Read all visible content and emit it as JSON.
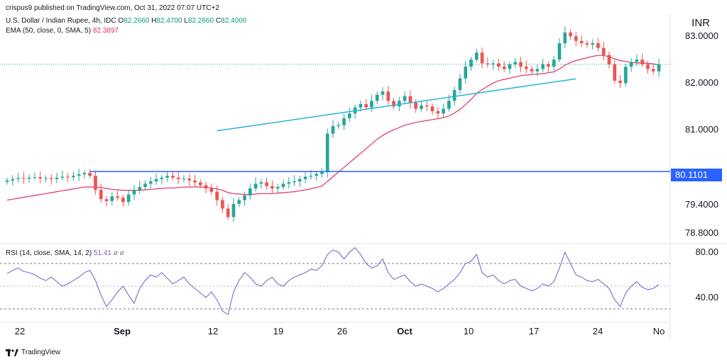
{
  "header": {
    "published": "crispus9 published on TradingView.com, Oct 31, 2022 07:07 UTC+2",
    "symbol": "U.S. Dollar / Indian Rupee, 4h, IDC",
    "ohlc": {
      "O_label": "O",
      "O": "82.2660",
      "H_label": "H",
      "H": "82.4700",
      "L_label": "L",
      "L": "82.2660",
      "C_label": "C",
      "C": "82.4000"
    },
    "ema_label": "EMA (50, close, 0, SMA, 5)",
    "ema_value": "82.3897"
  },
  "currency": "INR",
  "rsi_header": {
    "label": "RSI (14, close, SMA, 14, 2)",
    "value": "51.41",
    "extra": "ø  ø"
  },
  "price_tag": "80.1101",
  "brand": "TradingView",
  "colors": {
    "up": "#26a69a",
    "down": "#ef5350",
    "ema": "#e0306a",
    "support": "#2962ff",
    "trendline": "#23b5d3",
    "rsi": "#7e57c2"
  },
  "chart_data": {
    "type": "candlestick",
    "price_axis": {
      "ticks": [
        "83.0000",
        "82.0000",
        "81.0000",
        "80.1101",
        "79.4000",
        "78.8000"
      ],
      "ylim": [
        78.6,
        83.35
      ]
    },
    "x_axis": {
      "ticks": [
        "22",
        "Sep",
        "12",
        "19",
        "26",
        "Oct",
        "10",
        "17",
        "24",
        "No"
      ],
      "bold": [
        "Sep",
        "Oct"
      ]
    },
    "horizontal_support_level": 80.1101,
    "last_price_line": 82.4,
    "trendline": {
      "from": [
        38,
        80.98
      ],
      "to": [
        103,
        82.0
      ]
    },
    "closes": [
      79.92,
      79.95,
      79.97,
      79.96,
      79.98,
      79.99,
      79.96,
      79.97,
      79.95,
      79.98,
      80.0,
      79.99,
      80.02,
      80.05,
      80.08,
      80.02,
      79.72,
      79.52,
      79.48,
      79.58,
      79.55,
      79.46,
      79.62,
      79.72,
      79.78,
      79.85,
      79.9,
      79.95,
      79.98,
      80.02,
      79.98,
      79.95,
      79.96,
      79.92,
      79.88,
      79.82,
      79.75,
      79.68,
      79.5,
      79.32,
      79.14,
      79.42,
      79.5,
      79.6,
      79.75,
      79.85,
      79.88,
      79.8,
      79.75,
      79.78,
      79.85,
      79.88,
      79.9,
      79.95,
      80.0,
      80.02,
      80.06,
      80.1,
      80.92,
      81.08,
      81.1,
      81.25,
      81.35,
      81.48,
      81.55,
      81.48,
      81.62,
      81.75,
      81.82,
      81.62,
      81.5,
      81.62,
      81.72,
      81.58,
      81.45,
      81.52,
      81.5,
      81.4,
      81.35,
      81.45,
      81.62,
      81.85,
      82.1,
      82.35,
      82.5,
      82.65,
      82.42,
      82.4,
      82.42,
      82.35,
      82.3,
      82.4,
      82.45,
      82.35,
      82.3,
      82.25,
      82.3,
      82.4,
      82.35,
      82.5,
      82.85,
      83.08,
      83.0,
      82.9,
      82.85,
      82.82,
      82.85,
      82.75,
      82.6,
      82.4,
      82.05,
      82.0,
      82.35,
      82.45,
      82.5,
      82.4,
      82.3,
      82.25,
      82.4
    ],
    "ema50": [
      79.5,
      79.52,
      79.54,
      79.56,
      79.58,
      79.6,
      79.62,
      79.64,
      79.66,
      79.68,
      79.7,
      79.72,
      79.74,
      79.76,
      79.78,
      79.78,
      79.78,
      79.77,
      79.75,
      79.73,
      79.72,
      79.71,
      79.71,
      79.71,
      79.71,
      79.72,
      79.73,
      79.74,
      79.75,
      79.76,
      79.76,
      79.77,
      79.78,
      79.78,
      79.78,
      79.78,
      79.77,
      79.76,
      79.74,
      79.71,
      79.66,
      79.64,
      79.63,
      79.62,
      79.62,
      79.63,
      79.64,
      79.64,
      79.64,
      79.65,
      79.66,
      79.67,
      79.68,
      79.7,
      79.72,
      79.74,
      79.77,
      79.8,
      79.9,
      80.0,
      80.1,
      80.2,
      80.3,
      80.4,
      80.5,
      80.6,
      80.7,
      80.8,
      80.88,
      80.95,
      81.0,
      81.05,
      81.1,
      81.13,
      81.16,
      81.18,
      81.2,
      81.22,
      81.24,
      81.26,
      81.3,
      81.36,
      81.44,
      81.54,
      81.65,
      81.78,
      81.86,
      81.93,
      82.0,
      82.05,
      82.08,
      82.1,
      82.13,
      82.16,
      82.17,
      82.18,
      82.19,
      82.2,
      82.22,
      82.24,
      82.3,
      82.38,
      82.44,
      82.48,
      82.51,
      82.54,
      82.57,
      82.59,
      82.59,
      82.56,
      82.52,
      82.48,
      82.46,
      82.44,
      82.43,
      82.43,
      82.42,
      82.41,
      82.39
    ],
    "rsi": {
      "ylim": [
        20,
        85
      ],
      "ticks": [
        "80.00",
        "40.00"
      ],
      "bands": [
        70,
        30
      ],
      "midline": 50,
      "values": [
        61,
        64,
        66,
        63,
        62,
        60,
        57,
        55,
        58,
        54,
        50,
        52,
        55,
        58,
        62,
        64,
        55,
        42,
        32,
        38,
        45,
        50,
        42,
        35,
        48,
        55,
        60,
        58,
        62,
        57,
        52,
        55,
        58,
        52,
        48,
        44,
        40,
        45,
        38,
        28,
        25,
        45,
        55,
        62,
        58,
        52,
        50,
        55,
        58,
        52,
        50,
        55,
        58,
        60,
        62,
        65,
        64,
        68,
        78,
        82,
        80,
        74,
        80,
        84,
        78,
        70,
        66,
        68,
        74,
        62,
        56,
        58,
        60,
        54,
        50,
        52,
        50,
        48,
        45,
        48,
        52,
        56,
        62,
        70,
        72,
        78,
        62,
        58,
        60,
        55,
        52,
        55,
        56,
        50,
        48,
        46,
        48,
        52,
        50,
        54,
        66,
        80,
        70,
        60,
        58,
        55,
        54,
        56,
        52,
        48,
        38,
        32,
        44,
        50,
        54,
        49,
        47,
        48,
        51.41
      ]
    }
  }
}
